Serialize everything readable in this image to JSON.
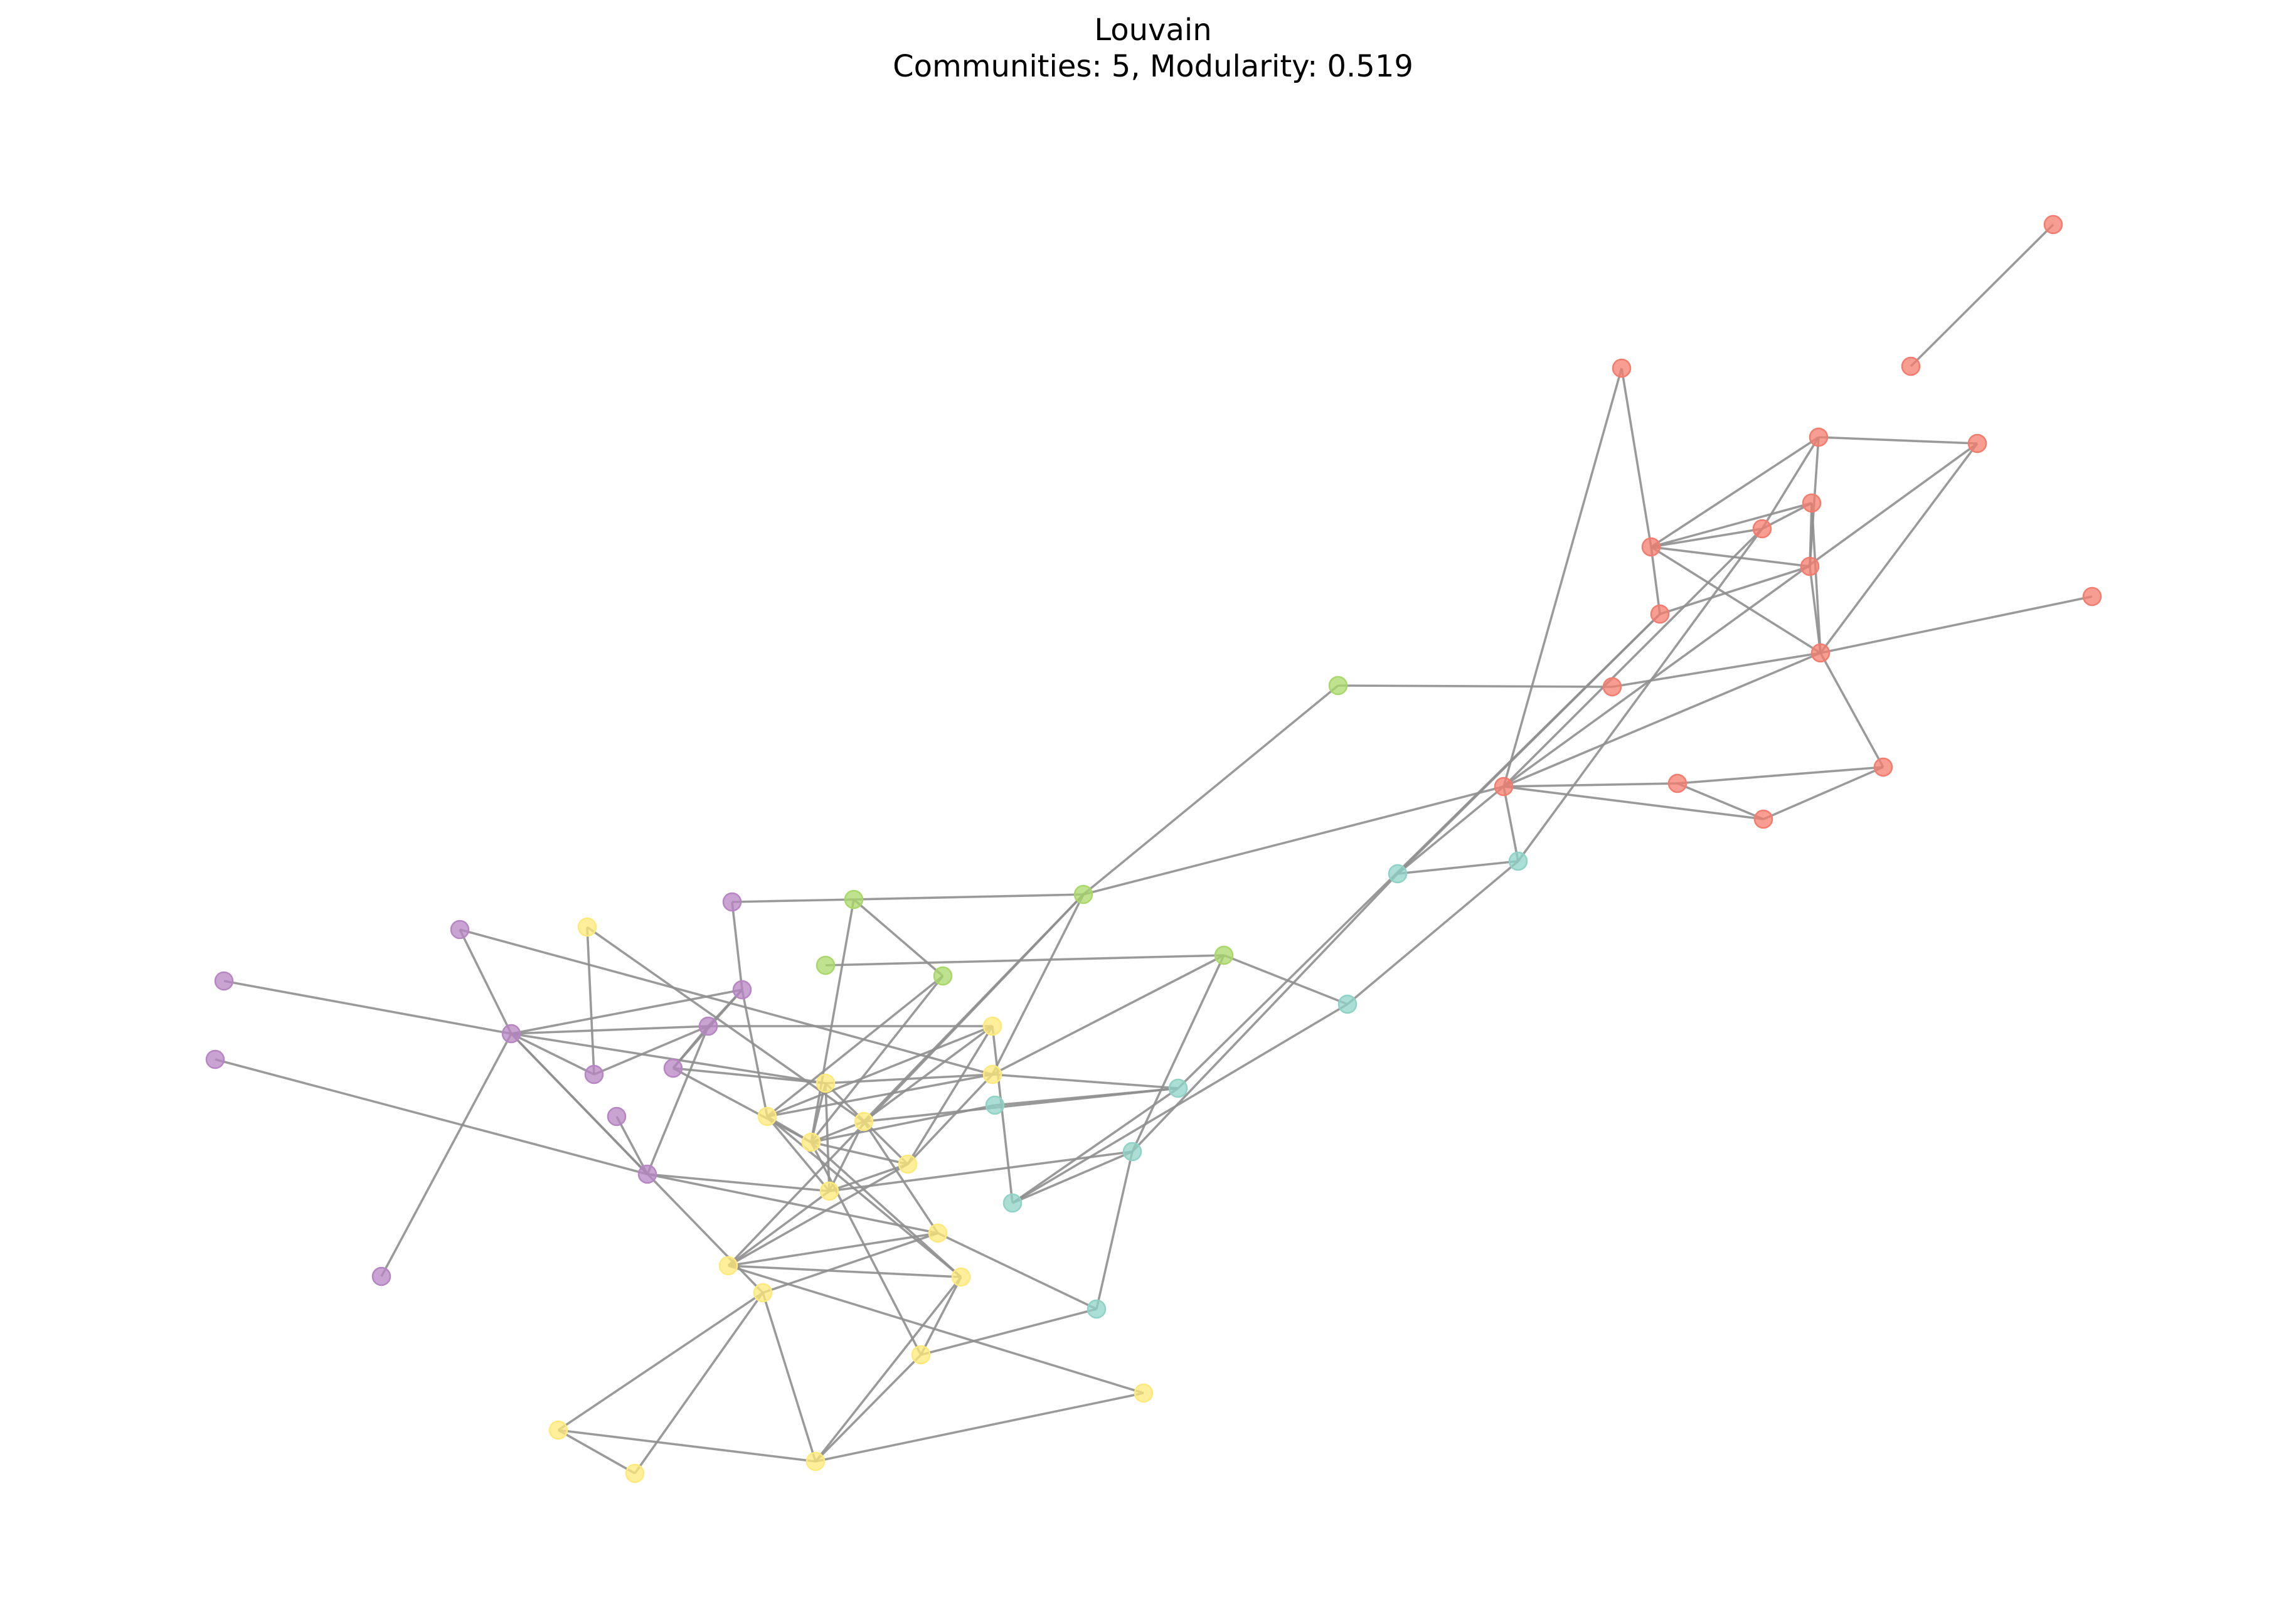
{
  "title": {
    "line1": "Louvain",
    "line2": "Communities: 5, Modularity: 0.519"
  },
  "style": {
    "edge_color": "#8f8f8f",
    "node_opacity": 0.75
  },
  "communities": [
    {
      "id": "red",
      "color": "#f47c6e"
    },
    {
      "id": "green",
      "color": "#a9d86a"
    },
    {
      "id": "teal",
      "color": "#8fd3c6"
    },
    {
      "id": "purple",
      "color": "#b785c4"
    },
    {
      "id": "yellow",
      "color": "#ffe97a"
    }
  ],
  "nodes": [
    {
      "id": "r0",
      "community": "red"
    },
    {
      "id": "r1",
      "community": "red"
    },
    {
      "id": "r2",
      "community": "red"
    },
    {
      "id": "r3",
      "community": "red"
    },
    {
      "id": "r4",
      "community": "red"
    },
    {
      "id": "r5",
      "community": "red"
    },
    {
      "id": "r6",
      "community": "red"
    },
    {
      "id": "r7",
      "community": "red"
    },
    {
      "id": "r8",
      "community": "red"
    },
    {
      "id": "r9",
      "community": "red"
    },
    {
      "id": "r10",
      "community": "red"
    },
    {
      "id": "r11",
      "community": "red"
    },
    {
      "id": "r12",
      "community": "red"
    },
    {
      "id": "r13",
      "community": "red"
    },
    {
      "id": "r14",
      "community": "red"
    },
    {
      "id": "r15",
      "community": "red"
    },
    {
      "id": "r16",
      "community": "red"
    },
    {
      "id": "g0",
      "community": "green"
    },
    {
      "id": "g1",
      "community": "green"
    },
    {
      "id": "g2",
      "community": "green"
    },
    {
      "id": "g3",
      "community": "green"
    },
    {
      "id": "g4",
      "community": "green"
    },
    {
      "id": "g5",
      "community": "green"
    },
    {
      "id": "t0",
      "community": "teal"
    },
    {
      "id": "t1",
      "community": "teal"
    },
    {
      "id": "t2",
      "community": "teal"
    },
    {
      "id": "t3",
      "community": "teal"
    },
    {
      "id": "t4",
      "community": "teal"
    },
    {
      "id": "t5",
      "community": "teal"
    },
    {
      "id": "t6",
      "community": "teal"
    },
    {
      "id": "t7",
      "community": "teal"
    },
    {
      "id": "p0",
      "community": "purple"
    },
    {
      "id": "p1",
      "community": "purple"
    },
    {
      "id": "p2",
      "community": "purple"
    },
    {
      "id": "p3",
      "community": "purple"
    },
    {
      "id": "p4",
      "community": "purple"
    },
    {
      "id": "p5",
      "community": "purple"
    },
    {
      "id": "p6",
      "community": "purple"
    },
    {
      "id": "p7",
      "community": "purple"
    },
    {
      "id": "p8",
      "community": "purple"
    },
    {
      "id": "p9",
      "community": "purple"
    },
    {
      "id": "p10",
      "community": "purple"
    },
    {
      "id": "p11",
      "community": "purple"
    },
    {
      "id": "y0",
      "community": "yellow"
    },
    {
      "id": "y1",
      "community": "yellow"
    },
    {
      "id": "y2",
      "community": "yellow"
    },
    {
      "id": "y3",
      "community": "yellow"
    },
    {
      "id": "y4",
      "community": "yellow"
    },
    {
      "id": "y5",
      "community": "yellow"
    },
    {
      "id": "y6",
      "community": "yellow"
    },
    {
      "id": "y7",
      "community": "yellow"
    },
    {
      "id": "y8",
      "community": "yellow"
    },
    {
      "id": "y9",
      "community": "yellow"
    },
    {
      "id": "y10",
      "community": "yellow"
    },
    {
      "id": "y11",
      "community": "yellow"
    },
    {
      "id": "y12",
      "community": "yellow"
    },
    {
      "id": "y13",
      "community": "yellow"
    },
    {
      "id": "y14",
      "community": "yellow"
    },
    {
      "id": "y15",
      "community": "yellow"
    },
    {
      "id": "y16",
      "community": "yellow"
    }
  ],
  "edges": [
    [
      "r0",
      "r1"
    ],
    [
      "r2",
      "r3"
    ],
    [
      "r2",
      "r4"
    ],
    [
      "r2",
      "r7"
    ],
    [
      "r2",
      "r16"
    ],
    [
      "r3",
      "r4"
    ],
    [
      "r3",
      "r5"
    ],
    [
      "r3",
      "r6"
    ],
    [
      "r3",
      "r8"
    ],
    [
      "r3",
      "r9"
    ],
    [
      "r3",
      "r16"
    ],
    [
      "r4",
      "r6"
    ],
    [
      "r4",
      "r5"
    ],
    [
      "r4",
      "r9"
    ],
    [
      "r5",
      "r6"
    ],
    [
      "r6",
      "r10"
    ],
    [
      "r6",
      "r11"
    ],
    [
      "r6",
      "r7"
    ],
    [
      "r6",
      "r14"
    ],
    [
      "r6",
      "r12"
    ],
    [
      "r7",
      "r12"
    ],
    [
      "r8",
      "r12"
    ],
    [
      "r5",
      "r16"
    ],
    [
      "r16",
      "r12"
    ],
    [
      "r12",
      "r13"
    ],
    [
      "r12",
      "r15"
    ],
    [
      "r12",
      "t0"
    ],
    [
      "r12",
      "t1"
    ],
    [
      "r13",
      "r15"
    ],
    [
      "r13",
      "r14"
    ],
    [
      "r14",
      "r15"
    ],
    [
      "r10",
      "g0"
    ],
    [
      "r9",
      "t3"
    ],
    [
      "r9",
      "t1"
    ],
    [
      "r16",
      "t0"
    ],
    [
      "r12",
      "g5"
    ],
    [
      "g0",
      "g5"
    ],
    [
      "g5",
      "g1"
    ],
    [
      "g5",
      "y5"
    ],
    [
      "g5",
      "y2"
    ],
    [
      "g5",
      "y10"
    ],
    [
      "g1",
      "p0"
    ],
    [
      "g1",
      "g3"
    ],
    [
      "g1",
      "y6"
    ],
    [
      "g2",
      "g4"
    ],
    [
      "g3",
      "y4"
    ],
    [
      "g3",
      "y6"
    ],
    [
      "g4",
      "t2"
    ],
    [
      "g4",
      "t5"
    ],
    [
      "g4",
      "y2"
    ],
    [
      "t0",
      "t1"
    ],
    [
      "t0",
      "t2"
    ],
    [
      "t1",
      "t5"
    ],
    [
      "t2",
      "t6"
    ],
    [
      "t3",
      "t6"
    ],
    [
      "t3",
      "t4"
    ],
    [
      "t3",
      "y2"
    ],
    [
      "t4",
      "y6"
    ],
    [
      "t5",
      "t6"
    ],
    [
      "t5",
      "t7"
    ],
    [
      "t5",
      "y8"
    ],
    [
      "t6",
      "y1"
    ],
    [
      "t7",
      "y9"
    ],
    [
      "t7",
      "y13"
    ],
    [
      "t3",
      "y5"
    ],
    [
      "p1",
      "p3"
    ],
    [
      "p1",
      "y2"
    ],
    [
      "p2",
      "p3"
    ],
    [
      "p3",
      "p4"
    ],
    [
      "p3",
      "p5"
    ],
    [
      "p3",
      "p6"
    ],
    [
      "p3",
      "p10"
    ],
    [
      "p3",
      "y3"
    ],
    [
      "p3",
      "y12"
    ],
    [
      "p4",
      "p6"
    ],
    [
      "p4",
      "y4"
    ],
    [
      "p5",
      "y0"
    ],
    [
      "p5",
      "p6"
    ],
    [
      "p6",
      "p7"
    ],
    [
      "p6",
      "p10"
    ],
    [
      "p6",
      "y1"
    ],
    [
      "p7",
      "y3"
    ],
    [
      "p8",
      "p10"
    ],
    [
      "p10",
      "y9"
    ],
    [
      "p10",
      "y8"
    ],
    [
      "p11",
      "p10"
    ],
    [
      "p0",
      "p4"
    ],
    [
      "p9",
      "p3"
    ],
    [
      "p7",
      "p4"
    ],
    [
      "p7",
      "y6"
    ],
    [
      "y0",
      "y5"
    ],
    [
      "y1",
      "y4"
    ],
    [
      "y1",
      "y5"
    ],
    [
      "y2",
      "y3"
    ],
    [
      "y2",
      "y7"
    ],
    [
      "y2",
      "y4"
    ],
    [
      "y3",
      "y6"
    ],
    [
      "y3",
      "y7"
    ],
    [
      "y3",
      "y8"
    ],
    [
      "y4",
      "y6"
    ],
    [
      "y4",
      "y8"
    ],
    [
      "y5",
      "y6"
    ],
    [
      "y5",
      "y9"
    ],
    [
      "y6",
      "y7"
    ],
    [
      "y6",
      "y11"
    ],
    [
      "y6",
      "y13"
    ],
    [
      "y7",
      "y8"
    ],
    [
      "y8",
      "y10"
    ],
    [
      "y9",
      "y10"
    ],
    [
      "y9",
      "y12"
    ],
    [
      "y10",
      "y11"
    ],
    [
      "y10",
      "y14"
    ],
    [
      "y11",
      "y13"
    ],
    [
      "y12",
      "y15"
    ],
    [
      "y13",
      "y16"
    ],
    [
      "y14",
      "y16"
    ],
    [
      "y15",
      "y16"
    ],
    [
      "y5",
      "y8"
    ],
    [
      "y7",
      "y10"
    ],
    [
      "y4",
      "y11"
    ],
    [
      "y1",
      "y7"
    ]
  ]
}
